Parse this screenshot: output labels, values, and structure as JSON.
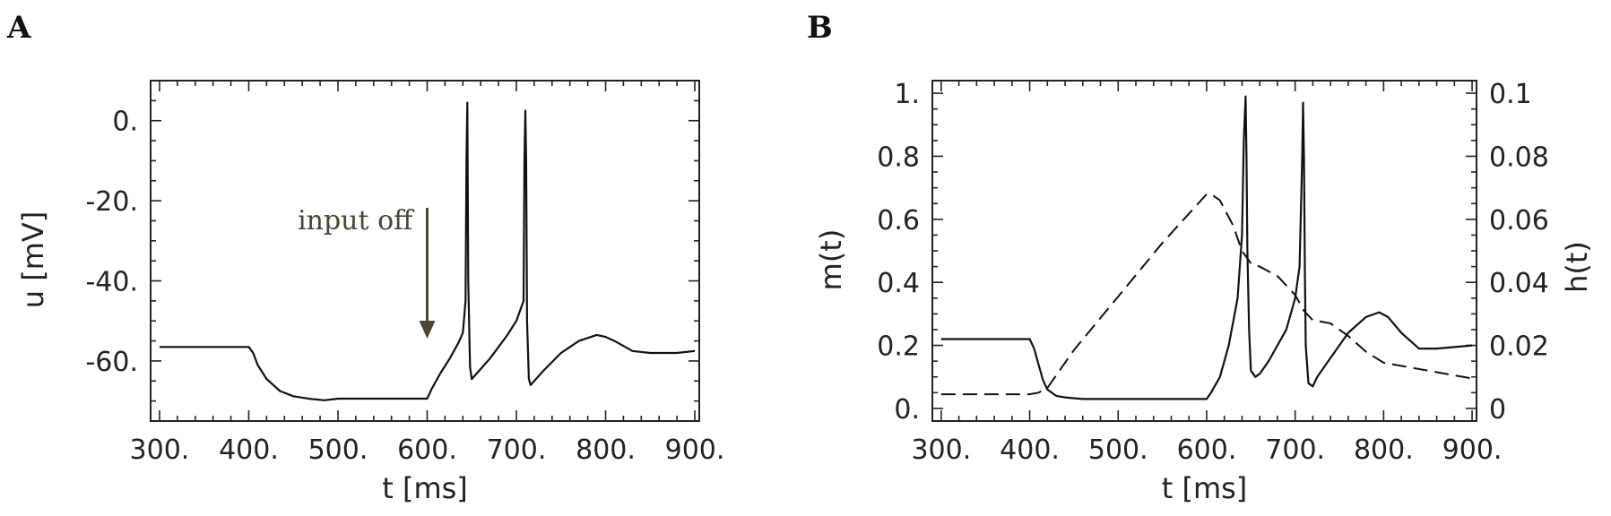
{
  "panels": {
    "a": {
      "letter": "A"
    },
    "b": {
      "letter": "B"
    }
  },
  "chart_data": [
    {
      "type": "line",
      "panel": "A",
      "xlabel": "t  [ms]",
      "ylabel": "u [mV]",
      "xlim": [
        290,
        905
      ],
      "ylim": [
        -75,
        10
      ],
      "xticks": [
        300,
        400,
        500,
        600,
        700,
        800,
        900
      ],
      "xtick_labels": [
        "300.",
        "400.",
        "500.",
        "600.",
        "700.",
        "800.",
        "900."
      ],
      "yticks": [
        0,
        -20,
        -40,
        -60
      ],
      "ytick_labels": [
        "0.",
        "-20.",
        "-40.",
        "-60."
      ],
      "annotation": {
        "text": "input off",
        "x": 600,
        "color": "#4a4535"
      },
      "series": [
        {
          "style": "solid",
          "x": [
            300,
            400,
            405,
            410,
            420,
            435,
            450,
            470,
            485,
            500,
            550,
            600,
            605,
            615,
            625,
            635,
            640,
            643,
            644,
            645,
            646,
            648,
            650,
            660,
            670,
            680,
            690,
            700,
            708,
            709,
            710,
            711,
            712,
            714,
            716,
            730,
            750,
            770,
            790,
            800,
            810,
            830,
            850,
            880,
            900
          ],
          "y": [
            -56.5,
            -56.5,
            -58,
            -61,
            -64.5,
            -67.5,
            -68.8,
            -69.5,
            -69.8,
            -69.4,
            -69.4,
            -69.4,
            -67,
            -63,
            -59.5,
            -55.5,
            -53,
            -45,
            -10,
            4.5,
            -40,
            -61.5,
            -64.5,
            -62,
            -59.5,
            -56.5,
            -53.5,
            -50,
            -45,
            -10,
            2.5,
            -10,
            -50,
            -64.5,
            -66,
            -62.5,
            -58,
            -55,
            -53.5,
            -54,
            -55,
            -57.5,
            -58,
            -58,
            -57.5
          ]
        }
      ]
    },
    {
      "type": "line",
      "panel": "B",
      "xlabel": "t  [ms]",
      "ylabel": "m(t)",
      "y2label": "h(t)",
      "xlim": [
        290,
        905
      ],
      "ylim": [
        -0.04,
        1.04
      ],
      "y2lim": [
        -0.004,
        0.104
      ],
      "xticks": [
        300,
        400,
        500,
        600,
        700,
        800,
        900
      ],
      "xtick_labels": [
        "300.",
        "400.",
        "500.",
        "600.",
        "700.",
        "800.",
        "900."
      ],
      "yticks": [
        0,
        0.2,
        0.4,
        0.6,
        0.8,
        1
      ],
      "ytick_labels": [
        "0.",
        "0.2",
        "0.4",
        "0.6",
        "0.8",
        "1."
      ],
      "y2ticks": [
        0,
        0.02,
        0.04,
        0.06,
        0.08,
        0.1
      ],
      "y2tick_labels": [
        "0",
        "0.02",
        "0.04",
        "0.06",
        "0.08",
        "0.1"
      ],
      "series": [
        {
          "style": "solid",
          "axis": "left",
          "x": [
            300,
            400,
            405,
            410,
            415,
            420,
            430,
            440,
            460,
            500,
            550,
            600,
            605,
            615,
            625,
            635,
            640,
            642,
            644,
            645,
            646,
            648,
            650,
            655,
            660,
            670,
            680,
            690,
            700,
            705,
            708,
            709,
            710,
            711,
            712,
            715,
            720,
            725,
            740,
            760,
            780,
            795,
            805,
            820,
            840,
            860,
            900
          ],
          "y": [
            0.22,
            0.22,
            0.19,
            0.14,
            0.09,
            0.06,
            0.04,
            0.035,
            0.03,
            0.03,
            0.03,
            0.03,
            0.05,
            0.1,
            0.2,
            0.35,
            0.55,
            0.85,
            0.99,
            0.8,
            0.5,
            0.25,
            0.12,
            0.1,
            0.11,
            0.15,
            0.2,
            0.25,
            0.35,
            0.45,
            0.8,
            0.97,
            0.8,
            0.45,
            0.2,
            0.08,
            0.07,
            0.1,
            0.16,
            0.24,
            0.29,
            0.305,
            0.29,
            0.24,
            0.19,
            0.19,
            0.2
          ]
        },
        {
          "style": "dashed",
          "axis": "right",
          "x": [
            300,
            400,
            410,
            420,
            430,
            450,
            500,
            550,
            600,
            605,
            615,
            630,
            640,
            645,
            650,
            660,
            680,
            700,
            710,
            720,
            740,
            760,
            780,
            800,
            830,
            860,
            900
          ],
          "y": [
            0.0045,
            0.0045,
            0.005,
            0.0065,
            0.0105,
            0.0185,
            0.0355,
            0.0525,
            0.068,
            0.068,
            0.066,
            0.058,
            0.05,
            0.048,
            0.046,
            0.045,
            0.042,
            0.036,
            0.031,
            0.028,
            0.027,
            0.023,
            0.018,
            0.0145,
            0.013,
            0.0115,
            0.0095
          ]
        }
      ]
    }
  ]
}
